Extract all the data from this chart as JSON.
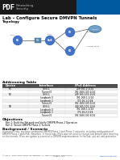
{
  "title": "Lab – Configure Secure DMVPN Tunnels",
  "section_topology": "Topology",
  "section_addressing": "Addressing Table",
  "section_objectives": "Objectives",
  "section_background": "Background / Scenario",
  "table_headers": [
    "Device",
    "Interface",
    "IPv4 Address"
  ],
  "table_rows": [
    [
      "R1",
      "G0/0-1",
      "209.165.2.1/24"
    ],
    [
      "",
      "Tunnel 0",
      "192.168.100.1/24"
    ],
    [
      "R2",
      "G0/0-1",
      "209.165.100.1/24"
    ],
    [
      "",
      "Loopback 0",
      "192.168.1.1/24"
    ],
    [
      "",
      "Loopback 1",
      "172.16.1.1/24"
    ],
    [
      "",
      "Tunnel 0",
      "192.168.100.2/24"
    ],
    [
      "R3",
      "G0/0-1",
      "209.165.101.1/24"
    ],
    [
      "",
      "Loopback 0",
      "192.168.1.1/24"
    ],
    [
      "",
      "Loopback 1",
      "172.16.2.1/24"
    ],
    [
      "",
      "Tunnel 0",
      "192.168.100.3/24"
    ]
  ],
  "objectives_lines": [
    "Part 1: Build the Network and Verify DMVPN Phase 2 Operation",
    "Part 2: Secure DMVPN Phase 2 Tunnels"
  ],
  "background_text": "In previous labs, you have configured DMVPN Phase 1 and Phase 2 networks, including configuration of\nDMVPN Phase 2 with IPv6. Networks. In these labs, IPsec was not used to encrypt and protect data traveling\non the tunnels. IPsec encryption is essential to DMVPN implementation. In this lab, you will add protection",
  "footer_text": "© 2013 - 2014 Cisco and/or its affiliates. All rights reserved. Cisco Public",
  "footer_page": "Page 1 of 6",
  "footer_url": "www.netacad.com",
  "pdf_label": "PDF",
  "bg_color": "#ffffff",
  "header_bg": "#1a1a1a",
  "table_header_bg": "#4d4d4d",
  "table_row_alt": "#eeeeee",
  "accent_color": "#0563c1",
  "text_color": "#000000",
  "gray_text": "#555555",
  "router_color": "#4472c4",
  "cloud_color": "#70a0c8"
}
